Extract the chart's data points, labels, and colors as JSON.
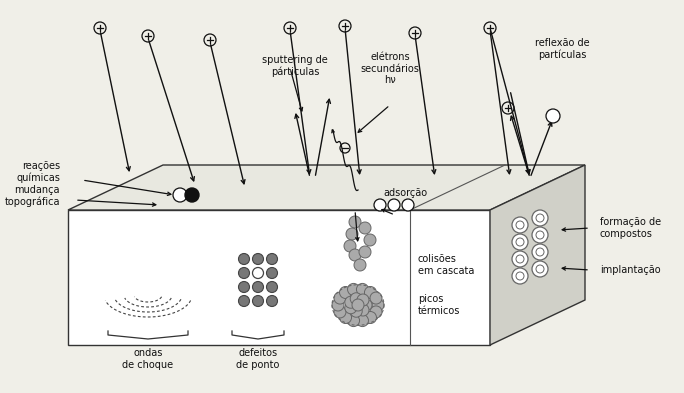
{
  "bg_color": "#f0efe8",
  "text_color": "#111111",
  "labels": {
    "sputtering": "sputtering de\npárticulas",
    "electrons": "elétrons\nsecundários\nhν",
    "reflection": "reflexão de\npartículas",
    "chemical": "reações\nquímicas",
    "topographic": "mudança\ntopográfica",
    "adsorption": "adsorção",
    "formation": "formação de\ncompostos",
    "implantation": "implantação",
    "shock_waves": "ondas\nde choque",
    "point_defects": "defeitos\nde ponto",
    "cascade": "colisões\nem cascata",
    "thermal_peaks": "picos\ntérmicos"
  },
  "figsize": [
    6.84,
    3.93
  ],
  "dpi": 100
}
